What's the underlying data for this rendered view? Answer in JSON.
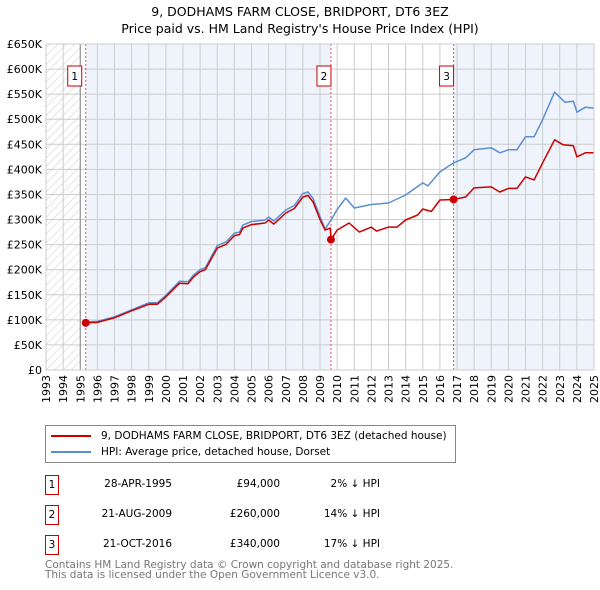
{
  "title_line1": "9, DODHAMS FARM CLOSE, BRIDPORT, DT6 3EZ",
  "title_line2": "Price paid vs. HM Land Registry's House Price Index (HPI)",
  "chart_data": {
    "type": "line",
    "title": "9, DODHAMS FARM CLOSE, BRIDPORT, DT6 3EZ — Price paid vs. HM Land Registry's House Price Index (HPI)",
    "xlim": [
      1993,
      2025
    ],
    "ylim": [
      0,
      650000
    ],
    "grid": true,
    "x_ticks": [
      "1993",
      "1994",
      "1995",
      "1996",
      "1997",
      "1998",
      "1999",
      "2000",
      "2001",
      "2002",
      "2003",
      "2004",
      "2005",
      "2006",
      "2007",
      "2008",
      "2009",
      "2010",
      "2011",
      "2012",
      "2013",
      "2014",
      "2015",
      "2016",
      "2017",
      "2018",
      "2019",
      "2020",
      "2021",
      "2022",
      "2023",
      "2024",
      "2025"
    ],
    "y_ticks": [
      {
        "v": 0,
        "label": "£0"
      },
      {
        "v": 50000,
        "label": "£50K"
      },
      {
        "v": 100000,
        "label": "£100K"
      },
      {
        "v": 150000,
        "label": "£150K"
      },
      {
        "v": 200000,
        "label": "£200K"
      },
      {
        "v": 250000,
        "label": "£250K"
      },
      {
        "v": 300000,
        "label": "£300K"
      },
      {
        "v": 350000,
        "label": "£350K"
      },
      {
        "v": 400000,
        "label": "£400K"
      },
      {
        "v": 450000,
        "label": "£450K"
      },
      {
        "v": 500000,
        "label": "£500K"
      },
      {
        "v": 550000,
        "label": "£550K"
      },
      {
        "v": 600000,
        "label": "£600K"
      },
      {
        "v": 650000,
        "label": "£650K"
      }
    ],
    "colors": {
      "property": "#cc0000",
      "hpi": "#5b8fd0",
      "shade": "#eef3fc"
    },
    "hatched_until": 1995,
    "series": [
      {
        "name": "9, DODHAMS FARM CLOSE, BRIDPORT, DT6 3EZ (detached house)",
        "color": "#cc0000",
        "x": [
          1995.32,
          1996,
          1997,
          1998,
          1999,
          1999.5,
          2000,
          2000.8,
          2001.3,
          2001.6,
          2002,
          2002.3,
          2003,
          2003.5,
          2004,
          2004.3,
          2004.5,
          2005,
          2005.8,
          2006,
          2006.3,
          2007,
          2007.5,
          2008,
          2008.3,
          2008.6,
          2009,
          2009.3,
          2009.6,
          2009.64,
          2010,
          2010.7,
          2011.3,
          2012,
          2012.3,
          2013,
          2013.5,
          2014,
          2014.7,
          2015,
          2015.5,
          2016,
          2016.8,
          2017.5,
          2018,
          2019,
          2019.5,
          2020,
          2020.5,
          2021,
          2021.5,
          2022,
          2022.7,
          2023.2,
          2023.8,
          2024,
          2024.5,
          2025
        ],
        "y": [
          94000,
          95000,
          104000,
          118000,
          131000,
          131000,
          146000,
          173000,
          172000,
          185000,
          196000,
          200000,
          243000,
          250000,
          268000,
          270000,
          283000,
          290000,
          293000,
          299000,
          291000,
          313000,
          322000,
          345000,
          348000,
          335000,
          300000,
          279000,
          283000,
          260000,
          279000,
          293000,
          275000,
          285000,
          277000,
          285000,
          285000,
          299000,
          309000,
          321000,
          316000,
          339000,
          340000,
          345000,
          363000,
          365000,
          355000,
          362000,
          362000,
          385000,
          379000,
          413000,
          459000,
          449000,
          447000,
          425000,
          433000,
          433000
        ]
      },
      {
        "name": "HPI: Average price, detached house, Dorset",
        "color": "#5b8fd0",
        "x": [
          1995.32,
          1996,
          1997,
          1998,
          1999,
          1999.5,
          2000,
          2000.8,
          2001.3,
          2001.6,
          2002,
          2002.3,
          2003,
          2003.5,
          2004,
          2004.3,
          2004.5,
          2005,
          2005.8,
          2006,
          2006.3,
          2007,
          2007.5,
          2008,
          2008.3,
          2008.6,
          2009,
          2009.3,
          2009.64,
          2010,
          2010.5,
          2011,
          2012,
          2013,
          2014,
          2015,
          2015.3,
          2016,
          2016.8,
          2017.5,
          2018,
          2019,
          2019.5,
          2020,
          2020.5,
          2021,
          2021.5,
          2022,
          2022.7,
          2023.3,
          2023.8,
          2024,
          2024.5,
          2025
        ],
        "y": [
          96000,
          97000,
          106000,
          120000,
          134000,
          134000,
          149000,
          177000,
          176000,
          189000,
          200000,
          204000,
          248000,
          255000,
          273000,
          275000,
          289000,
          296000,
          299000,
          305000,
          297000,
          319000,
          328000,
          352000,
          355000,
          342000,
          306000,
          281000,
          299000,
          320000,
          343000,
          323000,
          330000,
          333000,
          349000,
          373000,
          367000,
          395000,
          413000,
          423000,
          439000,
          443000,
          433000,
          439000,
          439000,
          465000,
          465000,
          499000,
          554000,
          534000,
          536000,
          514000,
          524000,
          522000
        ]
      }
    ],
    "sales": [
      {
        "id": "1",
        "x": 1995.32,
        "y": 94000
      },
      {
        "id": "2",
        "x": 2009.64,
        "y": 260000
      },
      {
        "id": "3",
        "x": 2016.8,
        "y": 340000
      }
    ]
  },
  "legend": {
    "property": "9, DODHAMS FARM CLOSE, BRIDPORT, DT6 3EZ (detached house)",
    "hpi": "HPI: Average price, detached house, Dorset"
  },
  "sales_table": [
    {
      "num": "1",
      "date": "28-APR-1995",
      "price": "£94,000",
      "hpi": "2% ↓ HPI"
    },
    {
      "num": "2",
      "date": "21-AUG-2009",
      "price": "£260,000",
      "hpi": "14% ↓ HPI"
    },
    {
      "num": "3",
      "date": "21-OCT-2016",
      "price": "£340,000",
      "hpi": "17% ↓ HPI"
    }
  ],
  "footer": {
    "line1": "Contains HM Land Registry data © Crown copyright and database right 2025.",
    "line2": "This data is licensed under the Open Government Licence v3.0."
  }
}
